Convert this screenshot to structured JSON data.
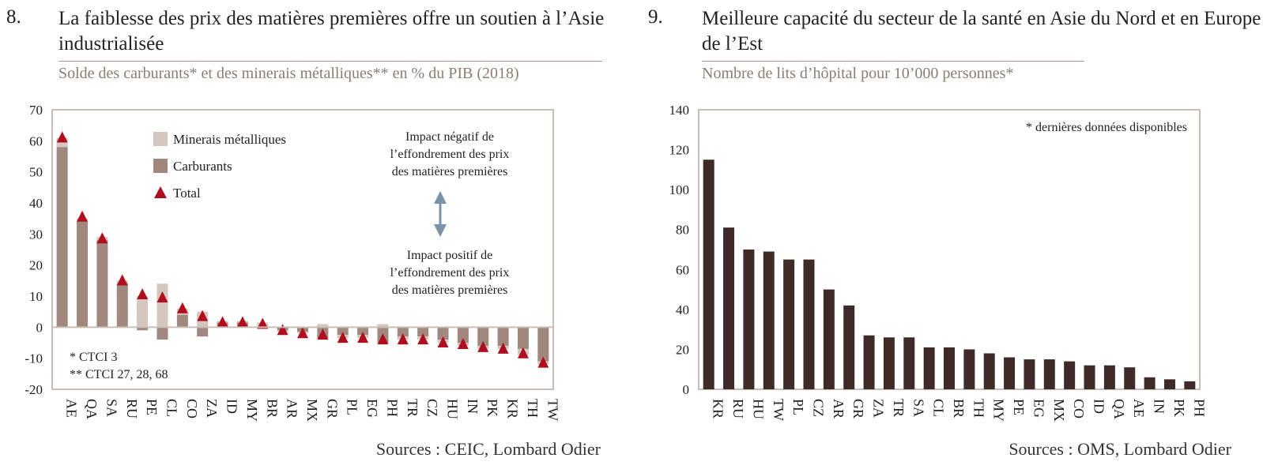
{
  "panels": [
    {
      "number": "8.",
      "title": "La faiblesse des prix des matières premières offre un soutien à l’Asie industrialisée",
      "subtitle": "Solde des carburants* et des minerais métalliques** en % du PIB (2018)",
      "source": "Sources : CEIC, Lombard Odier"
    },
    {
      "number": "9.",
      "title": "Meilleure capacité du secteur de la santé en Asie du Nord et en Europe de l’Est",
      "subtitle": "Nombre de lits d’hôpital pour 10’000 personnes*",
      "source": "Sources : OMS, Lombard Odier"
    }
  ],
  "chart_data": [
    {
      "type": "bar",
      "stacked": true,
      "categories": [
        "AE",
        "QA",
        "SA",
        "RU",
        "PE",
        "CL",
        "CO",
        "ZA",
        "ID",
        "MY",
        "BR",
        "AR",
        "MX",
        "GR",
        "PL",
        "EG",
        "PH",
        "TR",
        "CZ",
        "HU",
        "IN",
        "PK",
        "KR",
        "TH",
        "TW"
      ],
      "series": [
        {
          "name": "Minerais métalliques",
          "color": "#d4c7bf",
          "values": [
            3,
            1,
            1,
            1,
            10,
            14,
            2,
            5,
            0.5,
            0.5,
            1.5,
            -0.5,
            -0.5,
            1,
            -1,
            -1,
            1,
            -1,
            -1,
            -1,
            -1,
            -1,
            -1,
            -2,
            -1
          ]
        },
        {
          "name": "Carburants",
          "color": "#a0887e",
          "values": [
            58,
            34,
            28,
            14,
            -1,
            -4,
            4,
            -3,
            1.5,
            1.5,
            -0.5,
            -1,
            -1.5,
            -3.5,
            -2.5,
            -2.5,
            -5,
            -3,
            -3,
            -4,
            -5,
            -6,
            -6,
            -7,
            -11
          ]
        },
        {
          "name": "Total",
          "color": "#b00e1f",
          "marker": "triangle",
          "values": [
            61,
            35.5,
            28.5,
            15,
            10.5,
            9.5,
            6,
            3.5,
            1.5,
            1.5,
            1,
            -1,
            -2,
            -2.5,
            -3.5,
            -3.5,
            -4,
            -4,
            -4,
            -5,
            -5.5,
            -6.5,
            -7,
            -8.5,
            -11.5
          ]
        }
      ],
      "ylim": [
        -20,
        70
      ],
      "yticks": [
        -20,
        -10,
        0,
        10,
        20,
        30,
        40,
        50,
        60,
        70
      ],
      "legend_placement": "top-left",
      "annotations": {
        "negative_impact": [
          "Impact négatif de",
          "l’effondrement des prix",
          "des matières premières"
        ],
        "positive_impact": [
          "Impact positif de",
          "l’effondrement des prix",
          "des matières premières"
        ],
        "footnotes": [
          "* CTCI 3",
          "** CTCI 27, 28, 68"
        ]
      },
      "grid": false
    },
    {
      "type": "bar",
      "categories": [
        "KR",
        "RU",
        "HU",
        "TW",
        "PL",
        "CZ",
        "AR",
        "GR",
        "ZA",
        "TR",
        "SA",
        "CL",
        "BR",
        "TH",
        "MY",
        "PE",
        "EG",
        "MX",
        "CO",
        "ID",
        "QA",
        "AE",
        "IN",
        "PK",
        "PH"
      ],
      "series": [
        {
          "color": "#3e2b27",
          "values": [
            115,
            81,
            70,
            69,
            65,
            65,
            50,
            42,
            27,
            26,
            26,
            21,
            21,
            20,
            18,
            16,
            15,
            15,
            14,
            12,
            12,
            11,
            6,
            5,
            4
          ]
        }
      ],
      "ylim": [
        0,
        140
      ],
      "yticks": [
        0,
        20,
        40,
        60,
        80,
        100,
        120,
        140
      ],
      "annotations": {
        "note": "* dernières données disponibles"
      },
      "grid": false
    }
  ]
}
